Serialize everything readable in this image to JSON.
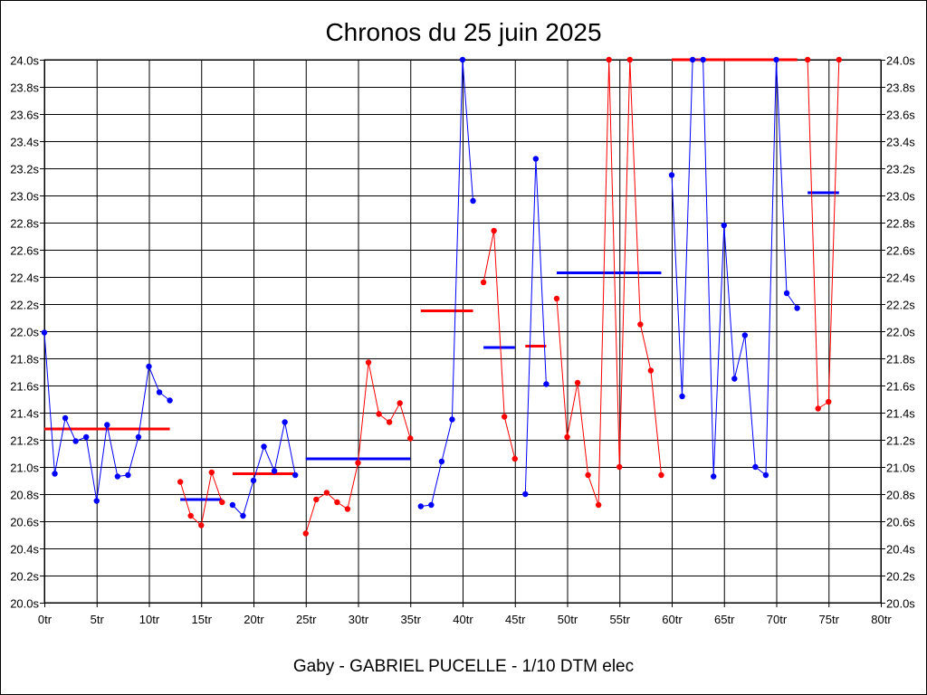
{
  "colors": {
    "blue": "#0000ff",
    "red": "#ff0000",
    "grid": "#000000",
    "background": "#ffffff"
  },
  "chart_data": {
    "type": "line",
    "title": "Chronos du 25 juin 2025",
    "footer": "Gaby - GABRIEL PUCELLE - 1/10 DTM elec",
    "xlabel": "",
    "ylabel": "",
    "xlim": [
      0,
      80
    ],
    "ylim": [
      20.0,
      24.0
    ],
    "x_ticks": [
      0,
      5,
      10,
      15,
      20,
      25,
      30,
      35,
      40,
      45,
      50,
      55,
      60,
      65,
      70,
      75,
      80
    ],
    "x_tick_labels": [
      "0tr",
      "5tr",
      "10tr",
      "15tr",
      "20tr",
      "25tr",
      "30tr",
      "35tr",
      "40tr",
      "45tr",
      "50tr",
      "55tr",
      "60tr",
      "65tr",
      "70tr",
      "75tr",
      "80tr"
    ],
    "y_ticks": [
      20.0,
      20.2,
      20.4,
      20.6,
      20.8,
      21.0,
      21.2,
      21.4,
      21.6,
      21.8,
      22.0,
      22.2,
      22.4,
      22.6,
      22.8,
      23.0,
      23.2,
      23.4,
      23.6,
      23.8,
      24.0
    ],
    "y_tick_labels": [
      "20.0s",
      "20.2s",
      "20.4s",
      "20.6s",
      "20.8s",
      "21.0s",
      "21.2s",
      "21.4s",
      "21.6s",
      "21.8s",
      "22.0s",
      "22.2s",
      "22.4s",
      "22.6s",
      "22.8s",
      "23.0s",
      "23.2s",
      "23.4s",
      "23.6s",
      "23.8s",
      "24.0s"
    ],
    "grid": true,
    "legend": "none",
    "series": [
      {
        "color": "#0000ff",
        "x": [
          0,
          1,
          2,
          3,
          4,
          5,
          6,
          7,
          8,
          9,
          10,
          11,
          12
        ],
        "y": [
          21.99,
          20.95,
          21.36,
          21.19,
          21.22,
          20.75,
          21.31,
          20.93,
          20.94,
          21.22,
          21.74,
          21.55,
          21.49
        ]
      },
      {
        "color": "#ff0000",
        "x": [
          13,
          14,
          15,
          16,
          17
        ],
        "y": [
          20.89,
          20.64,
          20.57,
          20.96,
          20.74
        ]
      },
      {
        "color": "#0000ff",
        "x": [
          18,
          19,
          20,
          21,
          22,
          23,
          24
        ],
        "y": [
          20.72,
          20.64,
          20.9,
          21.15,
          20.97,
          21.33,
          20.94
        ]
      },
      {
        "color": "#ff0000",
        "x": [
          25,
          26,
          27,
          28,
          29,
          30,
          31,
          32,
          33,
          34,
          35
        ],
        "y": [
          20.51,
          20.76,
          20.81,
          20.74,
          20.69,
          21.03,
          21.77,
          21.39,
          21.33,
          21.47,
          21.21
        ]
      },
      {
        "color": "#0000ff",
        "x": [
          36,
          37,
          38,
          39,
          40,
          41
        ],
        "y": [
          20.71,
          20.72,
          21.04,
          21.35,
          24.0,
          22.96
        ]
      },
      {
        "color": "#ff0000",
        "x": [
          42,
          43,
          44,
          45
        ],
        "y": [
          22.36,
          22.74,
          21.37,
          21.06
        ]
      },
      {
        "color": "#0000ff",
        "x": [
          46,
          47,
          48
        ],
        "y": [
          20.8,
          23.27,
          21.61
        ]
      },
      {
        "color": "#ff0000",
        "x": [
          49,
          50,
          51,
          52,
          53,
          54,
          55,
          56,
          57,
          58,
          59
        ],
        "y": [
          22.24,
          21.22,
          21.62,
          20.94,
          20.72,
          24.0,
          21.0,
          24.0,
          22.05,
          21.71,
          20.94
        ]
      },
      {
        "color": "#0000ff",
        "x": [
          60,
          61,
          62,
          63,
          64,
          65,
          66,
          67,
          68,
          69,
          70,
          71,
          72
        ],
        "y": [
          23.15,
          21.52,
          24.0,
          24.0,
          20.93,
          22.78,
          21.65,
          21.97,
          21.0,
          20.94,
          24.0,
          22.28,
          22.17
        ]
      },
      {
        "color": "#ff0000",
        "x": [
          73,
          74,
          75,
          76
        ],
        "y": [
          24.0,
          21.43,
          21.48,
          24.0
        ]
      }
    ],
    "averages": [
      {
        "color": "#ff0000",
        "x_start": 0,
        "x_end": 12,
        "y": 21.28
      },
      {
        "color": "#0000ff",
        "x_start": 13,
        "x_end": 17,
        "y": 20.76
      },
      {
        "color": "#ff0000",
        "x_start": 18,
        "x_end": 24,
        "y": 20.95
      },
      {
        "color": "#0000ff",
        "x_start": 25,
        "x_end": 35,
        "y": 21.06
      },
      {
        "color": "#ff0000",
        "x_start": 36,
        "x_end": 41,
        "y": 22.15
      },
      {
        "color": "#0000ff",
        "x_start": 42,
        "x_end": 45,
        "y": 21.88
      },
      {
        "color": "#ff0000",
        "x_start": 46,
        "x_end": 48,
        "y": 21.89
      },
      {
        "color": "#0000ff",
        "x_start": 49,
        "x_end": 59,
        "y": 22.43
      },
      {
        "color": "#ff0000",
        "x_start": 60,
        "x_end": 72,
        "y": 24.0
      },
      {
        "color": "#0000ff",
        "x_start": 73,
        "x_end": 76,
        "y": 23.02
      }
    ]
  }
}
